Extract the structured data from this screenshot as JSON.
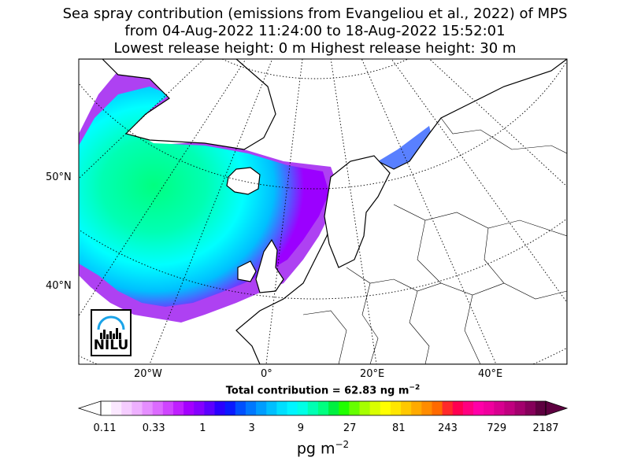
{
  "title": {
    "line1": "Sea spray contribution (emissions from Evangeliou et al., 2022) of MPS",
    "line2": "from 04-Aug-2022 11:24:00 to 18-Aug-2022 15:52:01",
    "line3": "Lowest release height: 0 m      Highest release height: 30 m"
  },
  "map": {
    "lat_labels": [
      "50°N",
      "40°N"
    ],
    "lon_labels": [
      "20°W",
      "0°",
      "20°E",
      "40°E"
    ],
    "logo_text": "NILU",
    "colors": {
      "land_border": "#000000",
      "graticule": "#000000",
      "ocean_low": "#9b00ff",
      "ocean_mid": "#00ffff",
      "ocean_high": "#00ff80"
    }
  },
  "total_contribution": "Total contribution = 62.83 ng m",
  "total_exp": "−2",
  "colorbar": {
    "ticks": [
      "0.11",
      "0.33",
      "1",
      "3",
      "9",
      "27",
      "81",
      "243",
      "729",
      "2187"
    ],
    "unit": "pg m",
    "unit_exp": "−2",
    "colors": [
      "#ffffff",
      "#fbe8ff",
      "#f5cdff",
      "#eeb0ff",
      "#e58eff",
      "#dc6bff",
      "#cf45ff",
      "#bf1fff",
      "#a400ff",
      "#8500ff",
      "#5c00ff",
      "#2a00ff",
      "#0a1aff",
      "#0050ff",
      "#0078ff",
      "#009dff",
      "#00bfff",
      "#00dfff",
      "#00f5ff",
      "#00ffe6",
      "#00ffb3",
      "#00ff80",
      "#00f040",
      "#20ff00",
      "#66ff00",
      "#a6ff00",
      "#d9ff00",
      "#ffff00",
      "#ffe600",
      "#ffc800",
      "#ffaa00",
      "#ff8c00",
      "#ff6a00",
      "#ff2a2a",
      "#ff0050",
      "#ff0080",
      "#ff00a8",
      "#f0009e",
      "#d80090",
      "#c0007f",
      "#a3006d",
      "#85005a",
      "#5e0040"
    ]
  }
}
